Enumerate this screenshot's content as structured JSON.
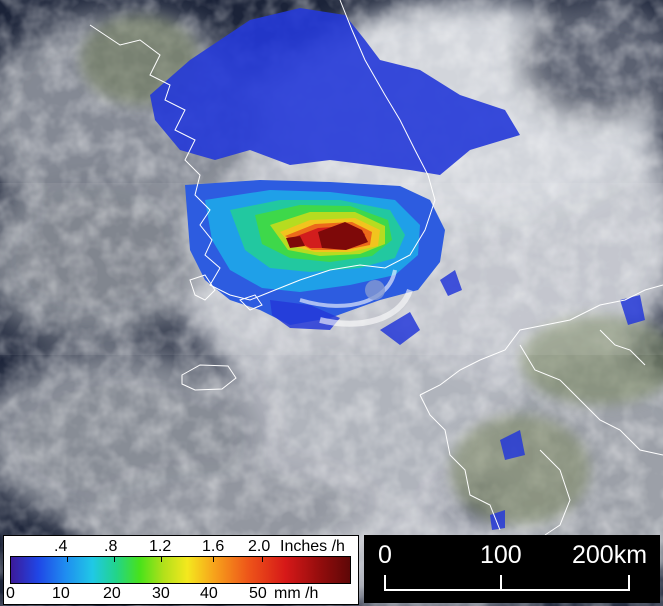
{
  "map": {
    "coastline_color": "#ffffff",
    "rain_colors": [
      "#2438d8",
      "#1f8cf0",
      "#22d48a",
      "#48e21a",
      "#f4e81e",
      "#ee5519",
      "#d61818",
      "#5e0707"
    ]
  },
  "legend": {
    "inch_ticks": [
      ".4",
      ".8",
      "1.2",
      "1.6",
      "2.0"
    ],
    "inch_unit": "Inches /h",
    "mm_ticks": [
      "0",
      "10",
      "20",
      "30",
      "40",
      "50"
    ],
    "mm_unit": "mm /h"
  },
  "scale_bar": {
    "labels": [
      "0",
      "100",
      "200km"
    ]
  }
}
